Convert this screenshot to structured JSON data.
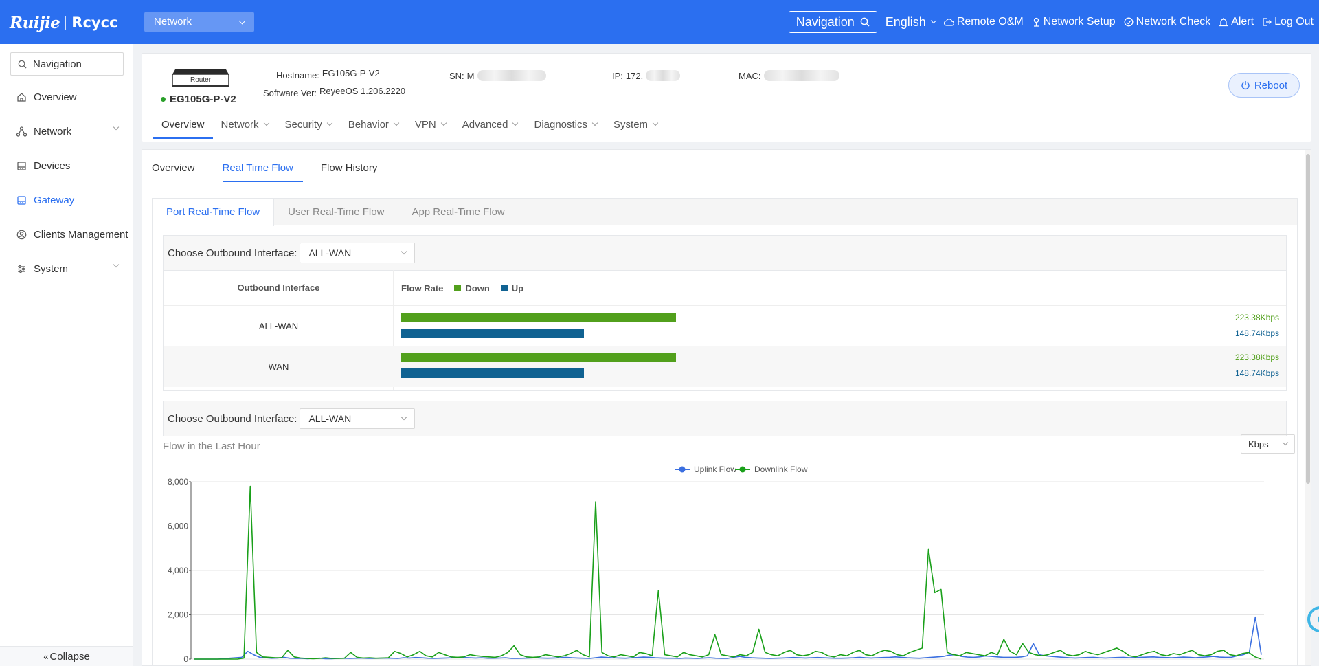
{
  "topbar": {
    "logo_left": "Ruijie",
    "logo_right": "Rcycc",
    "network_select": "Network",
    "nav_search": "Navigation",
    "language": "English",
    "links": {
      "remote": "Remote O&M",
      "setup": "Network Setup",
      "check": "Network Check",
      "alert": "Alert",
      "logout": "Log Out"
    },
    "bg_color": "#2b6ff0"
  },
  "sidebar": {
    "search": "Navigation",
    "items": [
      {
        "label": "Overview",
        "icon": "home-icon"
      },
      {
        "label": "Network",
        "icon": "topology-icon"
      },
      {
        "label": "Devices",
        "icon": "device-icon"
      },
      {
        "label": "Gateway",
        "icon": "gateway-icon"
      },
      {
        "label": "Clients Management",
        "icon": "user-icon"
      },
      {
        "label": "System",
        "icon": "settings-icon"
      }
    ],
    "collapse": "Collapse"
  },
  "device": {
    "router_label": "Router",
    "name": "EG105G-P-V2",
    "hostname_label": "Hostname:",
    "hostname": "EG105G-P-V2",
    "software_label": "Software Ver:",
    "software": "ReyeeOS 1.206.2220",
    "sn_label": "SN:",
    "sn_visible": "M",
    "ip_label": "IP:",
    "ip_visible": "172.",
    "mac_label": "MAC:",
    "reboot": "Reboot",
    "tabs": [
      "Overview",
      "Network",
      "Security",
      "Behavior",
      "VPN",
      "Advanced",
      "Diagnostics",
      "System"
    ]
  },
  "sub_tabs": [
    "Overview",
    "Real Time Flow",
    "Flow History"
  ],
  "flow_tabs": [
    "Port Real-Time Flow",
    "User Real-Time Flow",
    "App Real-Time Flow"
  ],
  "interface_selector": {
    "label": "Choose Outbound Interface:",
    "value": "ALL-WAN"
  },
  "flow_table": {
    "col_interface": "Outbound Interface",
    "col_rate": "Flow Rate",
    "legend_down": "Down",
    "legend_up": "Up",
    "down_color": "#52a01c",
    "up_color": "#106292",
    "rows": [
      {
        "name": "ALL-WAN",
        "down": "223.38Kbps",
        "up": "148.74Kbps",
        "down_kbps": 223.38,
        "up_kbps": 148.74
      },
      {
        "name": "WAN",
        "down": "223.38Kbps",
        "up": "148.74Kbps",
        "down_kbps": 223.38,
        "up_kbps": 148.74
      }
    ]
  },
  "chart_selector": {
    "label": "Choose Outbound Interface:",
    "value": "ALL-WAN"
  },
  "chart": {
    "title": "Flow in the Last Hour",
    "unit": "Kbps"
  },
  "chart_data": {
    "type": "line",
    "title": "Flow in the Last Hour",
    "ylim": [
      0,
      8000
    ],
    "yticks": [
      "8,000",
      "6,000",
      "4,000",
      "2,000",
      "0"
    ],
    "grid": true,
    "legend_position": "top-center",
    "series": [
      {
        "name": "Uplink Flow",
        "color": "#3b6fe0",
        "values": [
          0,
          0,
          0,
          0,
          0,
          20,
          40,
          60,
          80,
          350,
          200,
          80,
          60,
          40,
          50,
          80,
          40,
          30,
          30,
          20,
          30,
          40,
          20,
          20,
          30,
          40,
          30,
          40,
          50,
          30,
          30,
          40,
          50,
          40,
          30,
          60,
          50,
          70,
          60,
          40,
          30,
          40,
          50,
          60,
          80,
          70,
          60,
          50,
          60,
          40,
          40,
          50,
          60,
          30,
          30,
          40,
          50,
          60,
          50,
          40,
          50,
          60,
          80,
          60,
          50,
          40,
          30,
          60,
          90,
          70,
          60,
          50,
          40,
          60,
          70,
          90,
          80,
          60,
          50,
          40,
          40,
          30,
          50,
          40,
          30,
          50,
          60,
          40,
          30,
          30,
          80,
          120,
          80,
          60,
          50,
          40,
          30,
          40,
          50,
          60,
          70,
          60,
          50,
          60,
          70,
          60,
          50,
          40,
          40,
          50,
          60,
          80,
          60,
          50,
          60,
          70,
          80,
          100,
          80,
          60,
          50,
          40,
          60,
          80,
          100,
          120,
          180,
          200,
          120,
          90,
          80,
          100,
          140,
          120,
          100,
          80,
          80,
          80,
          100,
          150,
          700,
          200,
          150,
          120,
          100,
          80,
          60,
          50,
          60,
          70,
          80,
          60,
          50,
          60,
          70,
          80,
          60,
          70,
          80,
          90,
          100,
          80,
          70,
          60,
          70,
          90,
          80,
          60,
          80,
          100,
          120,
          90,
          80,
          80,
          150,
          200,
          300,
          1900,
          200
        ]
      },
      {
        "name": "Downlink Flow",
        "color": "#1aa01a",
        "values": [
          0,
          0,
          0,
          0,
          0,
          0,
          0,
          0,
          50,
          7800,
          300,
          100,
          80,
          60,
          60,
          400,
          100,
          50,
          30,
          20,
          30,
          60,
          30,
          30,
          40,
          300,
          80,
          50,
          60,
          40,
          50,
          60,
          350,
          250,
          100,
          200,
          350,
          150,
          100,
          300,
          200,
          100,
          80,
          100,
          200,
          150,
          120,
          100,
          80,
          150,
          300,
          600,
          200,
          100,
          80,
          100,
          200,
          150,
          100,
          150,
          250,
          400,
          200,
          100,
          7100,
          300,
          150,
          100,
          200,
          150,
          100,
          300,
          250,
          150,
          3100,
          200,
          150,
          100,
          300,
          200,
          150,
          100,
          200,
          1100,
          200,
          150,
          100,
          200,
          150,
          300,
          1350,
          300,
          200,
          150,
          300,
          400,
          200,
          150,
          200,
          350,
          300,
          150,
          100,
          200,
          150,
          300,
          400,
          200,
          150,
          300,
          400,
          350,
          200,
          150,
          300,
          400,
          500,
          4950,
          3000,
          3150,
          300,
          200,
          150,
          300,
          250,
          200,
          150,
          300,
          200,
          900,
          350,
          200,
          700,
          300,
          200,
          150,
          200,
          300,
          400,
          200,
          150,
          200,
          350,
          250,
          200,
          300,
          400,
          500,
          350,
          150,
          100,
          200,
          300,
          350,
          200,
          150,
          250,
          200,
          300,
          400,
          200,
          150,
          200,
          350,
          400,
          200,
          150,
          250,
          300,
          100,
          0
        ]
      }
    ]
  }
}
